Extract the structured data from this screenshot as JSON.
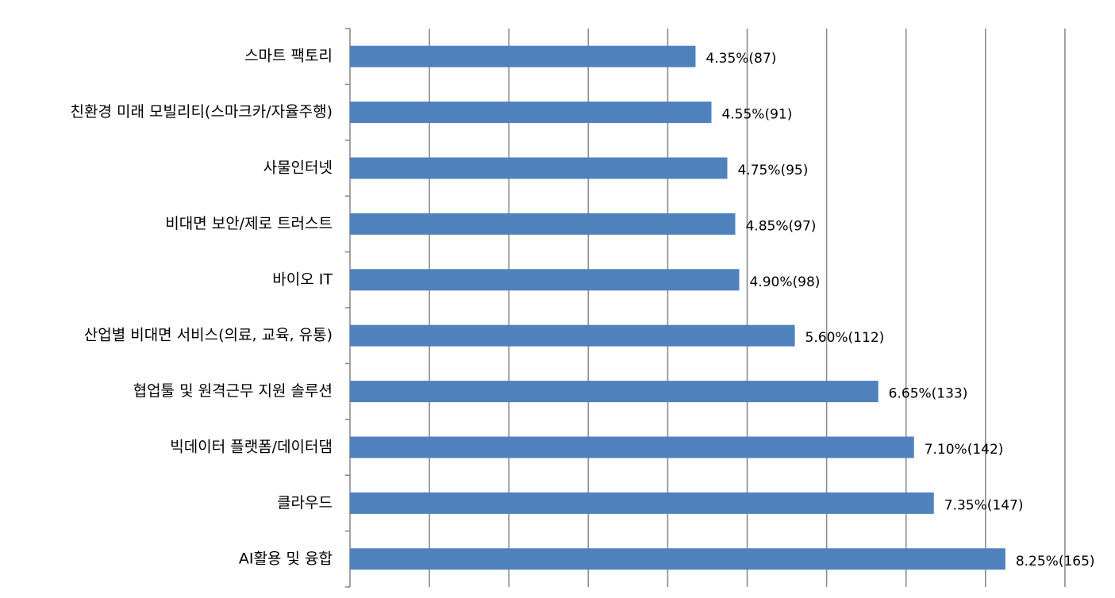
{
  "chart_data": {
    "type": "bar",
    "orientation": "horizontal",
    "title": "",
    "xlabel": "",
    "ylabel": "",
    "xlim": [
      0,
      9
    ],
    "grid": true,
    "legend": "none",
    "bar_color": "#4F81BD",
    "categories": [
      "스마트 팩토리",
      "친환경 미래 모빌리티(스마크카/자율주행)",
      "사물인터넷",
      "비대면 보안/제로 트러스트",
      "바이오 IT",
      "산업별 비대면 서비스(의료, 교육, 유통)",
      "협업툴 및 원격근무 지원 솔루션",
      "빅데이터 플랫폼/데이터댐",
      "클라우드",
      "AI활용 및 융합"
    ],
    "values": [
      4.35,
      4.55,
      4.75,
      4.85,
      4.9,
      5.6,
      6.65,
      7.1,
      7.35,
      8.25
    ],
    "counts": [
      87,
      91,
      95,
      97,
      98,
      112,
      133,
      142,
      147,
      165
    ],
    "data_labels": [
      "4.35%(87)",
      "4.55%(91)",
      "4.75%(95)",
      "4.85%(97)",
      "4.90%(98)",
      "5.60%(112)",
      "6.65%(133)",
      "7.10%(142)",
      "7.35%(147)",
      "8.25%(165)"
    ]
  }
}
